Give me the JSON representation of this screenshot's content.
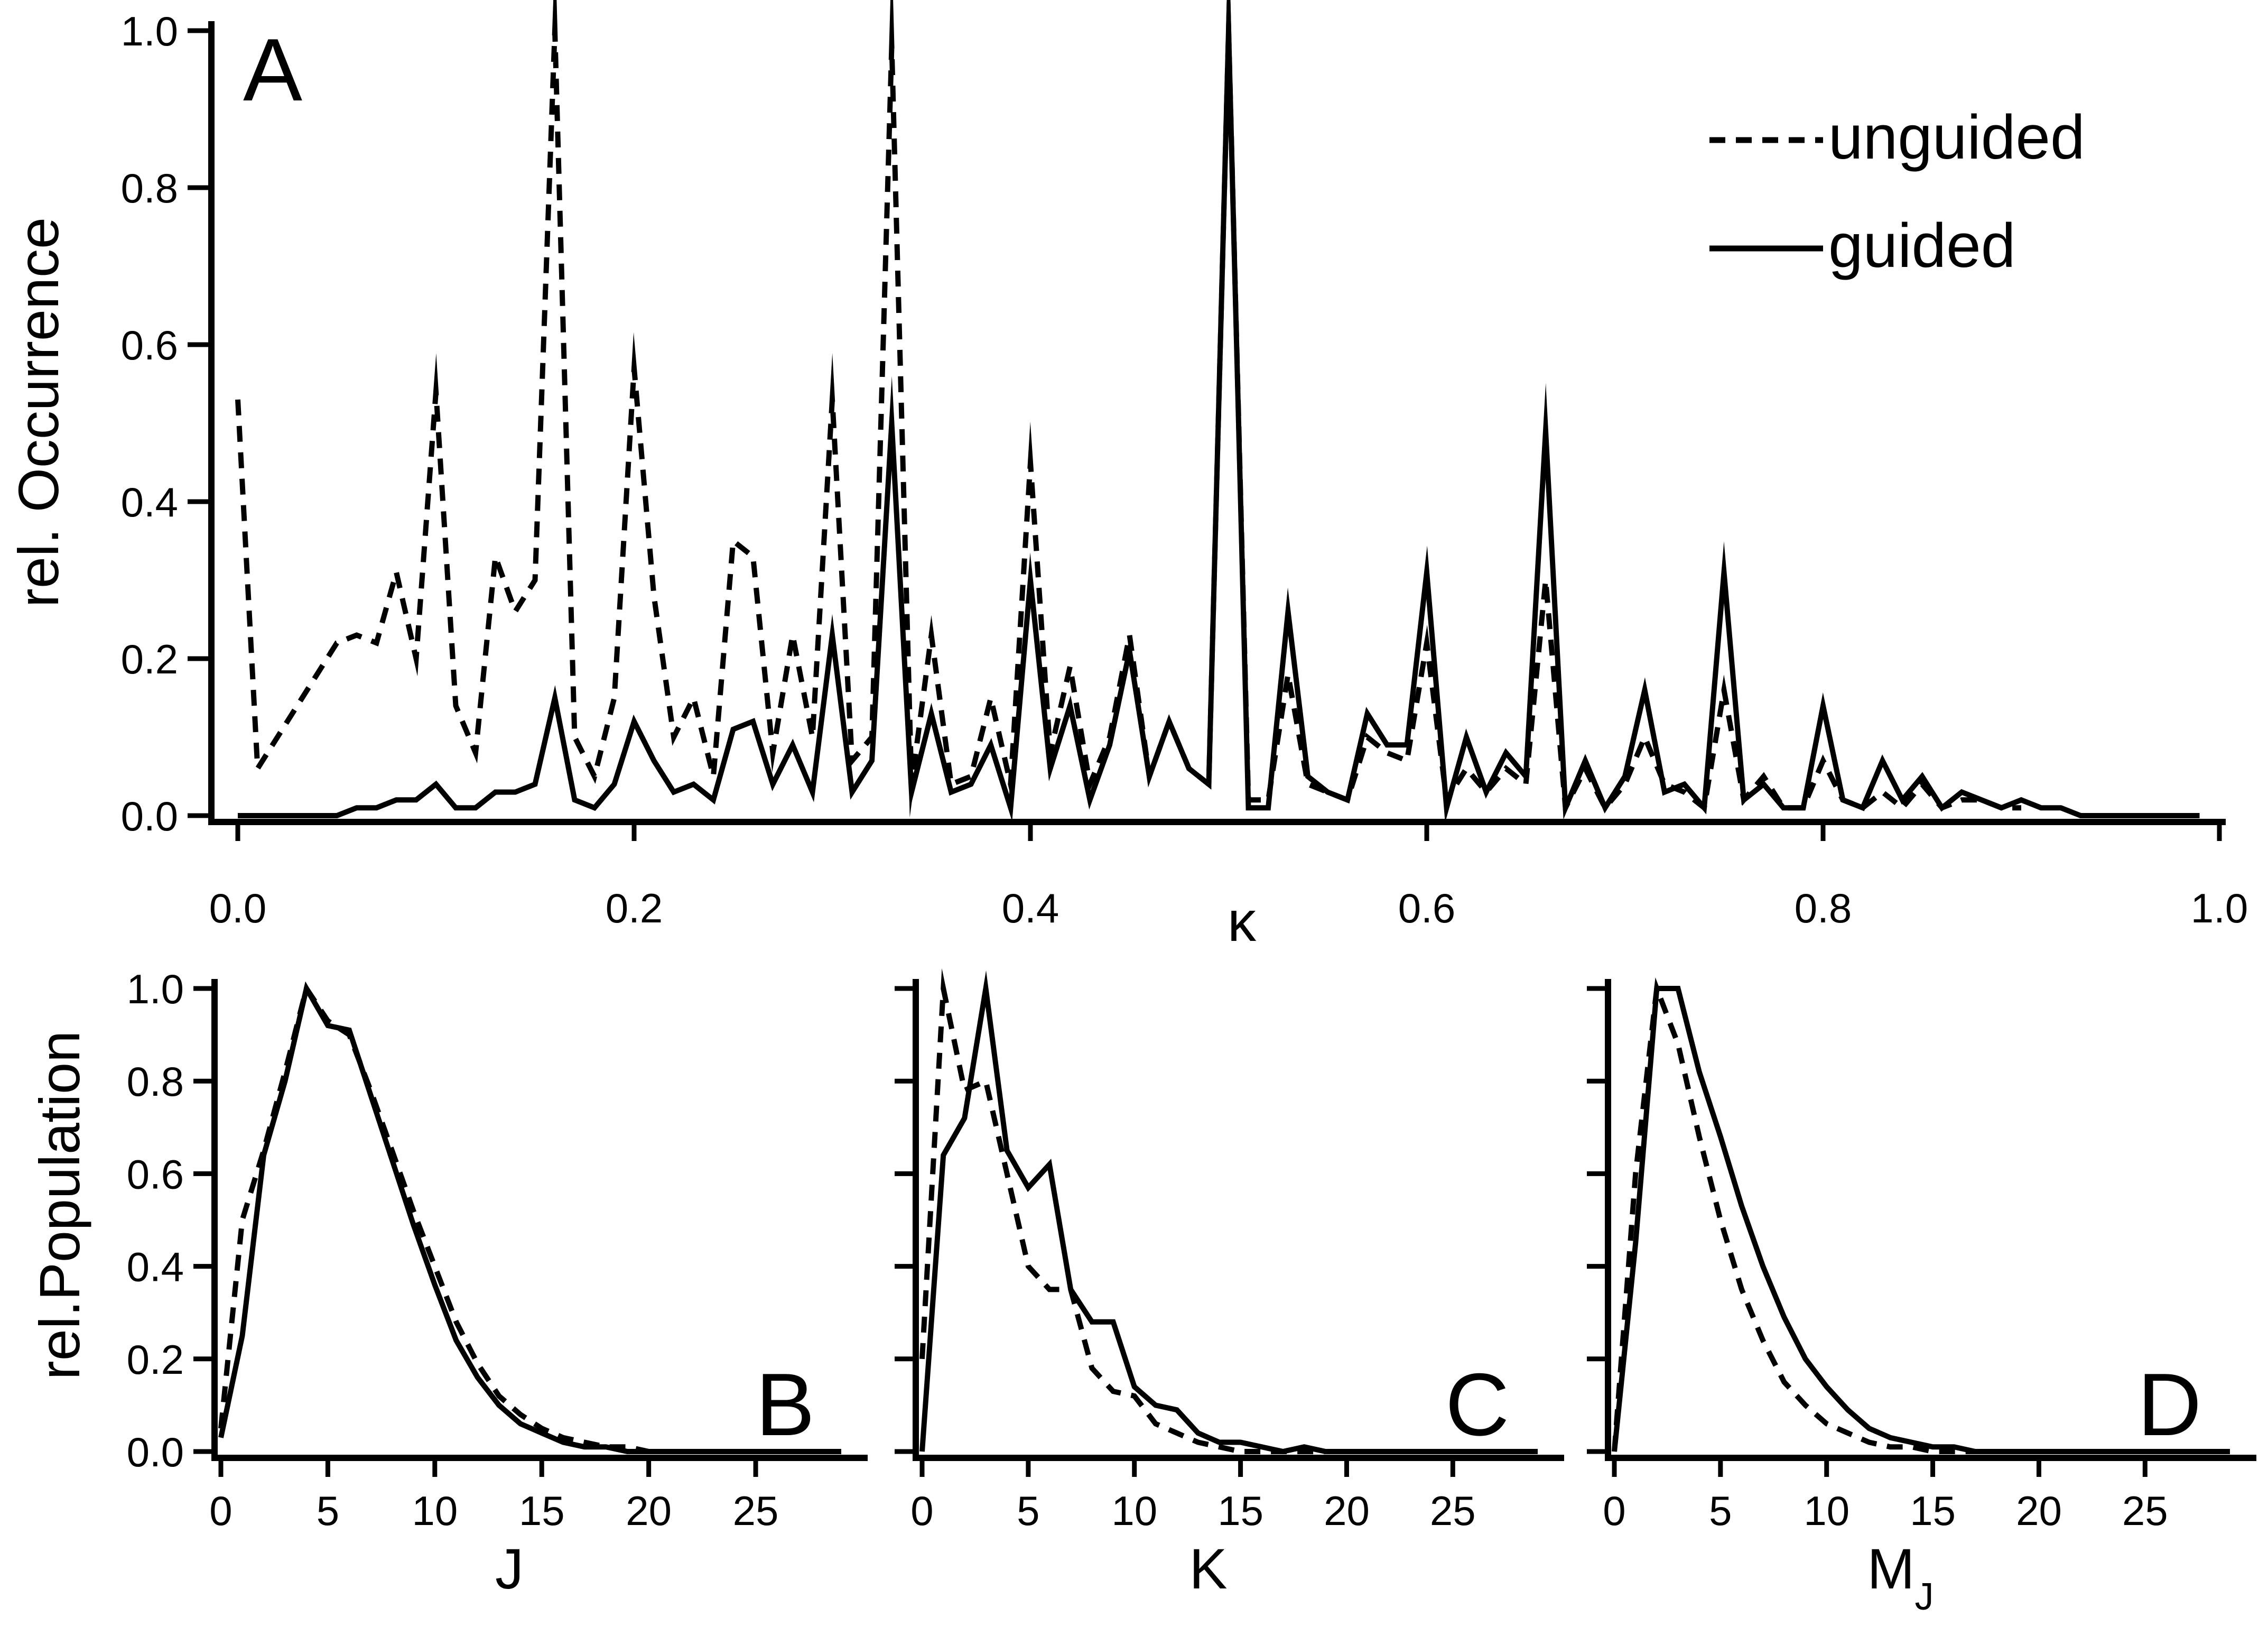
{
  "chart_data": [
    {
      "panel": "A",
      "type": "line",
      "xlabel": "κ",
      "ylabel": "rel. Occurrence",
      "xlim": [
        0.0,
        1.0
      ],
      "ylim": [
        0.0,
        1.0
      ],
      "xticks": [
        "0.0",
        "0.2",
        "0.4",
        "0.6",
        "0.8",
        "1.0"
      ],
      "yticks": [
        "0.0",
        "0.2",
        "0.4",
        "0.6",
        "0.8",
        "1.0"
      ],
      "grid": false,
      "legend": {
        "placement": "top-right",
        "entries": [
          "unguided",
          "guided"
        ]
      },
      "series": [
        {
          "name": "unguided",
          "style": "dashed",
          "x": [
            0.0,
            0.01,
            0.02,
            0.03,
            0.04,
            0.05,
            0.06,
            0.07,
            0.08,
            0.09,
            0.1,
            0.11,
            0.12,
            0.13,
            0.14,
            0.15,
            0.16,
            0.17,
            0.18,
            0.19,
            0.2,
            0.21,
            0.22,
            0.23,
            0.24,
            0.25,
            0.26,
            0.27,
            0.28,
            0.29,
            0.3,
            0.31,
            0.32,
            0.33,
            0.34,
            0.35,
            0.36,
            0.37,
            0.38,
            0.39,
            0.4,
            0.41,
            0.42,
            0.43,
            0.44,
            0.45,
            0.46,
            0.47,
            0.48,
            0.49,
            0.5,
            0.51,
            0.52,
            0.53,
            0.54,
            0.55,
            0.56,
            0.57,
            0.58,
            0.59,
            0.6,
            0.61,
            0.62,
            0.63,
            0.64,
            0.65,
            0.66,
            0.67,
            0.68,
            0.69,
            0.7,
            0.71,
            0.72,
            0.73,
            0.74,
            0.75,
            0.76,
            0.77,
            0.78,
            0.79,
            0.8,
            0.81,
            0.82,
            0.83,
            0.84,
            0.85,
            0.86,
            0.87,
            0.88,
            0.89,
            0.9
          ],
          "values": [
            0.53,
            0.06,
            0.1,
            0.14,
            0.18,
            0.22,
            0.23,
            0.22,
            0.31,
            0.2,
            0.54,
            0.14,
            0.08,
            0.33,
            0.26,
            0.3,
            1.0,
            0.1,
            0.05,
            0.15,
            0.57,
            0.28,
            0.1,
            0.15,
            0.05,
            0.35,
            0.33,
            0.08,
            0.23,
            0.1,
            0.53,
            0.07,
            0.1,
            0.98,
            0.04,
            0.23,
            0.04,
            0.05,
            0.15,
            0.04,
            0.45,
            0.08,
            0.19,
            0.04,
            0.1,
            0.23,
            0.05,
            0.12,
            0.06,
            0.04,
            1.0,
            0.02,
            0.02,
            0.18,
            0.04,
            0.03,
            0.02,
            0.1,
            0.08,
            0.07,
            0.22,
            0.02,
            0.06,
            0.03,
            0.06,
            0.04,
            0.3,
            0.01,
            0.06,
            0.01,
            0.04,
            0.1,
            0.04,
            0.03,
            0.01,
            0.16,
            0.02,
            0.05,
            0.01,
            0.01,
            0.07,
            0.02,
            0.01,
            0.03,
            0.01,
            0.04,
            0.01,
            0.02,
            0.02,
            0.01,
            0.01
          ]
        },
        {
          "name": "guided",
          "style": "solid",
          "x": [
            0.0,
            0.01,
            0.02,
            0.03,
            0.04,
            0.05,
            0.06,
            0.07,
            0.08,
            0.09,
            0.1,
            0.11,
            0.12,
            0.13,
            0.14,
            0.15,
            0.16,
            0.17,
            0.18,
            0.19,
            0.2,
            0.21,
            0.22,
            0.23,
            0.24,
            0.25,
            0.26,
            0.27,
            0.28,
            0.29,
            0.3,
            0.31,
            0.32,
            0.33,
            0.34,
            0.35,
            0.36,
            0.37,
            0.38,
            0.39,
            0.4,
            0.41,
            0.42,
            0.43,
            0.44,
            0.45,
            0.46,
            0.47,
            0.48,
            0.49,
            0.5,
            0.51,
            0.52,
            0.53,
            0.54,
            0.55,
            0.56,
            0.57,
            0.58,
            0.59,
            0.6,
            0.61,
            0.62,
            0.63,
            0.64,
            0.65,
            0.66,
            0.67,
            0.68,
            0.69,
            0.7,
            0.71,
            0.72,
            0.73,
            0.74,
            0.75,
            0.76,
            0.77,
            0.78,
            0.79,
            0.8,
            0.81,
            0.82,
            0.83,
            0.84,
            0.85,
            0.86,
            0.87,
            0.88,
            0.89,
            0.9,
            0.91,
            0.92,
            0.93,
            0.94,
            0.95,
            0.96,
            0.97,
            0.98,
            0.99
          ],
          "values": [
            0.0,
            0.0,
            0.0,
            0.0,
            0.0,
            0.0,
            0.01,
            0.01,
            0.02,
            0.02,
            0.04,
            0.01,
            0.01,
            0.03,
            0.03,
            0.04,
            0.15,
            0.02,
            0.01,
            0.04,
            0.12,
            0.07,
            0.03,
            0.04,
            0.02,
            0.11,
            0.12,
            0.04,
            0.09,
            0.03,
            0.23,
            0.03,
            0.07,
            0.5,
            0.03,
            0.13,
            0.03,
            0.04,
            0.09,
            0.01,
            0.3,
            0.06,
            0.14,
            0.02,
            0.09,
            0.21,
            0.05,
            0.12,
            0.06,
            0.04,
            1.0,
            0.01,
            0.01,
            0.26,
            0.05,
            0.03,
            0.02,
            0.13,
            0.09,
            0.09,
            0.31,
            0.01,
            0.1,
            0.03,
            0.08,
            0.05,
            0.49,
            0.01,
            0.07,
            0.01,
            0.05,
            0.16,
            0.03,
            0.04,
            0.01,
            0.31,
            0.02,
            0.04,
            0.01,
            0.01,
            0.14,
            0.02,
            0.01,
            0.07,
            0.02,
            0.05,
            0.01,
            0.03,
            0.02,
            0.01,
            0.02,
            0.01,
            0.01,
            0.0,
            0.0,
            0.0,
            0.0,
            0.0,
            0.0,
            0.0
          ]
        }
      ]
    },
    {
      "panel": "B",
      "type": "line",
      "xlabel": "J",
      "ylabel": "rel.Population",
      "xlim": [
        0,
        29
      ],
      "ylim": [
        0.0,
        1.0
      ],
      "xticks": [
        "0",
        "5",
        "10",
        "15",
        "20",
        "25"
      ],
      "yticks": [
        "0.0",
        "0.2",
        "0.4",
        "0.6",
        "0.8",
        "1.0"
      ],
      "grid": false,
      "series": [
        {
          "name": "unguided",
          "style": "dashed",
          "x": [
            0,
            1,
            2,
            3,
            4,
            5,
            6,
            7,
            8,
            9,
            10,
            11,
            12,
            13,
            14,
            15,
            16,
            17,
            18,
            19,
            20,
            21,
            22,
            23,
            24,
            25,
            26,
            27,
            28,
            29
          ],
          "values": [
            0.05,
            0.5,
            0.65,
            0.82,
            1.0,
            0.93,
            0.9,
            0.78,
            0.65,
            0.52,
            0.4,
            0.28,
            0.19,
            0.12,
            0.08,
            0.05,
            0.03,
            0.02,
            0.01,
            0.01,
            0.0,
            0.0,
            0.0,
            0.0,
            0.0,
            0.0,
            0.0,
            0.0,
            0.0,
            0.0
          ]
        },
        {
          "name": "guided",
          "style": "solid",
          "x": [
            0,
            1,
            2,
            3,
            4,
            5,
            6,
            7,
            8,
            9,
            10,
            11,
            12,
            13,
            14,
            15,
            16,
            17,
            18,
            19,
            20,
            21,
            22,
            23,
            24,
            25,
            26,
            27,
            28,
            29
          ],
          "values": [
            0.03,
            0.25,
            0.64,
            0.8,
            1.0,
            0.92,
            0.91,
            0.77,
            0.63,
            0.49,
            0.36,
            0.24,
            0.16,
            0.1,
            0.06,
            0.04,
            0.02,
            0.01,
            0.01,
            0.0,
            0.0,
            0.0,
            0.0,
            0.0,
            0.0,
            0.0,
            0.0,
            0.0,
            0.0,
            0.0
          ]
        }
      ]
    },
    {
      "panel": "C",
      "type": "line",
      "xlabel": "K",
      "xlim": [
        0,
        29
      ],
      "ylim": [
        0.0,
        1.0
      ],
      "xticks": [
        "0",
        "5",
        "10",
        "15",
        "20",
        "25"
      ],
      "grid": false,
      "series": [
        {
          "name": "unguided",
          "style": "dashed",
          "x": [
            0,
            1,
            2,
            3,
            4,
            5,
            6,
            7,
            8,
            9,
            10,
            11,
            12,
            13,
            14,
            15,
            16,
            17,
            18,
            19,
            20
          ],
          "values": [
            0.2,
            1.0,
            0.78,
            0.8,
            0.6,
            0.4,
            0.35,
            0.35,
            0.18,
            0.13,
            0.12,
            0.06,
            0.04,
            0.02,
            0.01,
            0.0,
            0.0,
            0.0,
            0.0,
            0.0,
            0.0
          ]
        },
        {
          "name": "guided",
          "style": "solid",
          "x": [
            0,
            1,
            2,
            3,
            4,
            5,
            6,
            7,
            8,
            9,
            10,
            11,
            12,
            13,
            14,
            15,
            16,
            17,
            18,
            19,
            20,
            21,
            22,
            23,
            24,
            25,
            26,
            27,
            28,
            29
          ],
          "values": [
            0.0,
            0.64,
            0.72,
            1.0,
            0.65,
            0.57,
            0.62,
            0.35,
            0.28,
            0.28,
            0.14,
            0.1,
            0.09,
            0.04,
            0.02,
            0.02,
            0.01,
            0.0,
            0.01,
            0.0,
            0.0,
            0.0,
            0.0,
            0.0,
            0.0,
            0.0,
            0.0,
            0.0,
            0.0,
            0.0
          ]
        }
      ]
    },
    {
      "panel": "D",
      "type": "line",
      "xlabel": "M",
      "xlabel_subscript": "J",
      "xlim": [
        0,
        29
      ],
      "ylim": [
        0.0,
        1.0
      ],
      "xticks": [
        "0",
        "5",
        "10",
        "15",
        "20",
        "25"
      ],
      "grid": false,
      "series": [
        {
          "name": "unguided",
          "style": "dashed",
          "x": [
            0,
            1,
            2,
            3,
            4,
            5,
            6,
            7,
            8,
            9,
            10,
            11,
            12,
            13,
            14,
            15,
            16,
            17,
            18,
            19,
            20,
            21,
            22,
            23,
            24,
            25,
            26,
            27,
            28,
            29
          ],
          "values": [
            0.0,
            0.6,
            1.0,
            0.88,
            0.68,
            0.5,
            0.35,
            0.24,
            0.15,
            0.1,
            0.06,
            0.04,
            0.02,
            0.01,
            0.01,
            0.0,
            0.0,
            0.0,
            0.0,
            0.0,
            0.0,
            0.0,
            0.0,
            0.0,
            0.0,
            0.0,
            0.0,
            0.0,
            0.0,
            0.0
          ]
        },
        {
          "name": "guided",
          "style": "solid",
          "x": [
            0,
            1,
            2,
            3,
            4,
            5,
            6,
            7,
            8,
            9,
            10,
            11,
            12,
            13,
            14,
            15,
            16,
            17,
            18,
            19,
            20,
            21,
            22,
            23,
            24,
            25,
            26,
            27,
            28,
            29
          ],
          "values": [
            0.0,
            0.45,
            1.0,
            1.0,
            0.82,
            0.68,
            0.53,
            0.4,
            0.29,
            0.2,
            0.14,
            0.09,
            0.05,
            0.03,
            0.02,
            0.01,
            0.01,
            0.0,
            0.0,
            0.0,
            0.0,
            0.0,
            0.0,
            0.0,
            0.0,
            0.0,
            0.0,
            0.0,
            0.0,
            0.0
          ]
        }
      ]
    }
  ]
}
